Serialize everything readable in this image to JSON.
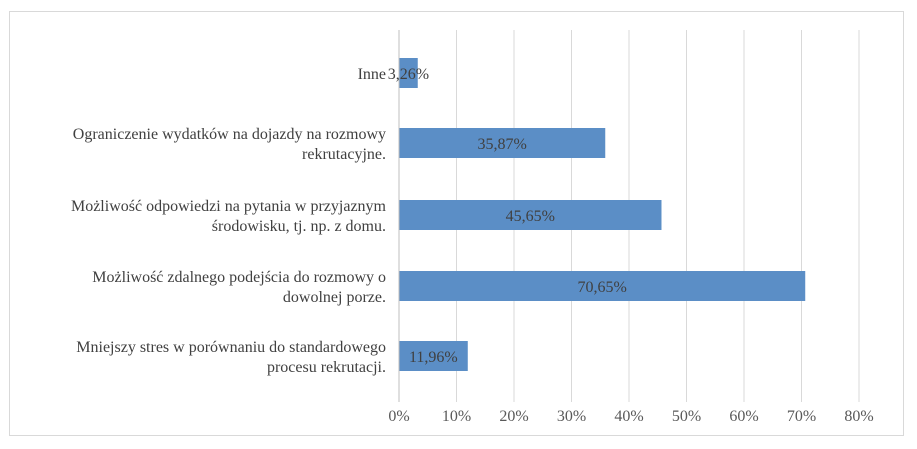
{
  "chart_data": {
    "type": "bar",
    "orientation": "horizontal",
    "categories": [
      [
        "Inne"
      ],
      [
        "Ograniczenie wydatków na dojazdy na rozmowy",
        "rekrutacyjne."
      ],
      [
        "Możliwość odpowiedzi na pytania w przyjaznym",
        "środowisku, tj. np. z domu."
      ],
      [
        "Możliwość zdalnego podejścia do rozmowy o",
        "dowolnej porze."
      ],
      [
        "Mniejszy stres w porównaniu do standardowego",
        "procesu rekrutacji."
      ]
    ],
    "values": [
      3.26,
      35.87,
      45.65,
      70.65,
      11.96
    ],
    "data_labels": [
      "3,26%",
      "35,87%",
      "45,65%",
      "70,65%",
      "11,96%"
    ],
    "xlim": [
      0,
      80
    ],
    "xticks": [
      "0%",
      "10%",
      "20%",
      "30%",
      "40%",
      "50%",
      "60%",
      "70%",
      "80%"
    ],
    "grid": true,
    "bar_color": "#5b8ec6",
    "title": "",
    "xlabel": "",
    "ylabel": ""
  }
}
